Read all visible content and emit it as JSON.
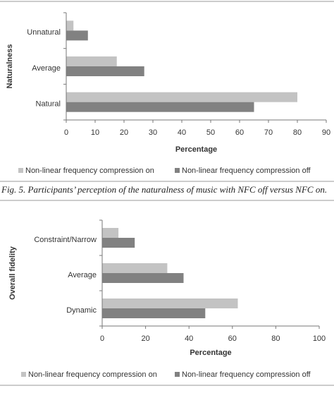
{
  "chart_data": [
    {
      "type": "barh",
      "ylabel": "Naturalness",
      "xlabel": "Percentage",
      "categories": [
        "Unnatural",
        "Average",
        "Natural"
      ],
      "series": [
        {
          "name": "Non-linear frequency compression on",
          "color": "#c3c3c3",
          "values": [
            2.5,
            17.5,
            80
          ]
        },
        {
          "name": "Non-linear frequency compression off",
          "color": "#818181",
          "values": [
            7.5,
            27,
            65
          ]
        }
      ],
      "xlim": [
        0,
        90
      ],
      "xticks": [
        0,
        10,
        20,
        30,
        40,
        50,
        60,
        70,
        80,
        90
      ],
      "legend": "bottom"
    },
    {
      "type": "barh",
      "ylabel": "Overall fidelity",
      "xlabel": "Percentage",
      "categories": [
        "Constraint/Narrow",
        "Average",
        "Dynamic"
      ],
      "series": [
        {
          "name": "Non-linear frequency compression on",
          "color": "#c3c3c3",
          "values": [
            7.5,
            30,
            62.5
          ]
        },
        {
          "name": "Non-linear frequency compression off",
          "color": "#818181",
          "values": [
            15,
            37.5,
            47.5
          ]
        }
      ],
      "xlim": [
        0,
        100
      ],
      "xticks": [
        0,
        20,
        40,
        60,
        80,
        100
      ],
      "legend": "bottom"
    }
  ],
  "caption": "Fig. 5. Participants’ perception of the naturalness of music with NFC off versus NFC on."
}
